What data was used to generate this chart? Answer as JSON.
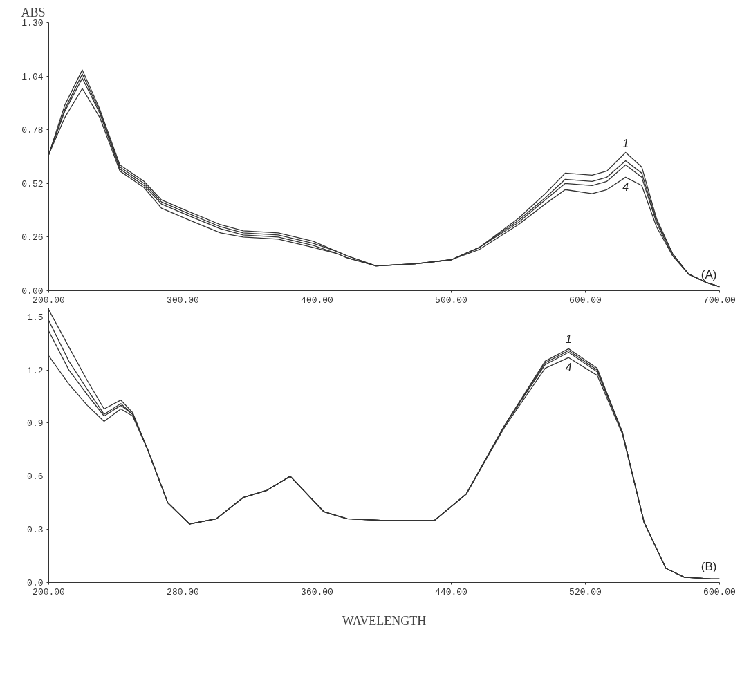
{
  "chart_data": [
    {
      "type": "line",
      "ylabel": "ABS",
      "xlim": [
        200,
        700
      ],
      "ylim": [
        0,
        1.3
      ],
      "xticks": [
        {
          "value": 200,
          "label": "200.00"
        },
        {
          "value": 300,
          "label": "300.00"
        },
        {
          "value": 400,
          "label": "400.00"
        },
        {
          "value": 500,
          "label": "500.00"
        },
        {
          "value": 600,
          "label": "600.00"
        },
        {
          "value": 700,
          "label": "700.00"
        }
      ],
      "yticks": [
        {
          "value": 0,
          "label": "0.00"
        },
        {
          "value": 0.26,
          "label": "0.26"
        },
        {
          "value": 0.52,
          "label": "0.52"
        },
        {
          "value": 0.78,
          "label": "0.78"
        },
        {
          "value": 1.04,
          "label": "1.04"
        },
        {
          "value": 1.3,
          "label": "1.30"
        }
      ],
      "x": [
        200,
        212,
        225,
        238,
        253,
        271,
        284,
        302,
        328,
        345,
        371,
        397,
        415,
        422,
        444,
        473,
        500,
        521,
        550,
        570,
        585,
        605,
        616,
        630,
        642,
        653,
        665,
        677,
        690,
        700
      ],
      "series": [
        {
          "color": "#333333",
          "values": [
            0.66,
            0.9,
            1.07,
            0.88,
            0.61,
            0.53,
            0.44,
            0.39,
            0.32,
            0.29,
            0.28,
            0.24,
            0.19,
            0.17,
            0.12,
            0.13,
            0.15,
            0.21,
            0.35,
            0.47,
            0.57,
            0.56,
            0.58,
            0.67,
            0.6,
            0.35,
            0.18,
            0.08,
            0.04,
            0.02
          ]
        },
        {
          "color": "#333333",
          "values": [
            0.66,
            0.88,
            1.05,
            0.87,
            0.6,
            0.52,
            0.43,
            0.38,
            0.31,
            0.28,
            0.27,
            0.23,
            0.19,
            0.17,
            0.12,
            0.13,
            0.15,
            0.21,
            0.34,
            0.45,
            0.54,
            0.53,
            0.55,
            0.63,
            0.57,
            0.34,
            0.18,
            0.08,
            0.04,
            0.02
          ]
        },
        {
          "color": "#333333",
          "values": [
            0.66,
            0.87,
            1.03,
            0.86,
            0.59,
            0.51,
            0.42,
            0.37,
            0.3,
            0.27,
            0.26,
            0.22,
            0.18,
            0.16,
            0.12,
            0.13,
            0.15,
            0.21,
            0.33,
            0.44,
            0.52,
            0.51,
            0.53,
            0.61,
            0.55,
            0.33,
            0.17,
            0.08,
            0.04,
            0.02
          ]
        },
        {
          "color": "#333333",
          "values": [
            0.66,
            0.84,
            0.98,
            0.84,
            0.58,
            0.5,
            0.4,
            0.35,
            0.28,
            0.26,
            0.25,
            0.21,
            0.18,
            0.16,
            0.12,
            0.13,
            0.15,
            0.2,
            0.32,
            0.42,
            0.49,
            0.47,
            0.49,
            0.55,
            0.51,
            0.31,
            0.17,
            0.08,
            0.04,
            0.02
          ]
        }
      ],
      "annotations": [
        "1",
        "4",
        "(A)"
      ],
      "grid": false,
      "line_style": "solid",
      "marker": "none"
    },
    {
      "type": "line",
      "xlabel": "WAVELENGTH",
      "xlim": [
        200,
        600
      ],
      "ylim": [
        0,
        1.55
      ],
      "xticks": [
        {
          "value": 200,
          "label": "200.00"
        },
        {
          "value": 280,
          "label": "280.00"
        },
        {
          "value": 360,
          "label": "360.00"
        },
        {
          "value": 440,
          "label": "440.00"
        },
        {
          "value": 520,
          "label": "520.00"
        },
        {
          "value": 600,
          "label": "600.00"
        }
      ],
      "yticks": [
        {
          "value": 0,
          "label": "0.0"
        },
        {
          "value": 0.3,
          "label": "0.3"
        },
        {
          "value": 0.6,
          "label": "0.6"
        },
        {
          "value": 0.9,
          "label": "0.9"
        },
        {
          "value": 1.2,
          "label": "1.2"
        },
        {
          "value": 1.5,
          "label": "1.5"
        }
      ],
      "x": [
        200,
        212,
        223,
        233,
        243,
        250,
        259,
        271,
        284,
        300,
        316,
        330,
        344,
        364,
        378,
        400,
        430,
        449,
        472,
        496,
        510,
        527,
        542,
        555,
        568,
        579,
        595,
        600
      ],
      "series": [
        {
          "color": "#333333",
          "values": [
            1.54,
            1.33,
            1.14,
            0.98,
            1.03,
            0.96,
            0.75,
            0.45,
            0.33,
            0.36,
            0.48,
            0.52,
            0.6,
            0.4,
            0.36,
            0.35,
            0.35,
            0.5,
            0.89,
            1.25,
            1.32,
            1.21,
            0.85,
            0.34,
            0.08,
            0.03,
            0.02,
            0.02
          ]
        },
        {
          "color": "#333333",
          "values": [
            1.48,
            1.25,
            1.09,
            0.95,
            1.01,
            0.95,
            0.75,
            0.45,
            0.33,
            0.36,
            0.48,
            0.52,
            0.6,
            0.4,
            0.36,
            0.35,
            0.35,
            0.5,
            0.89,
            1.24,
            1.31,
            1.2,
            0.85,
            0.34,
            0.08,
            0.03,
            0.02,
            0.02
          ]
        },
        {
          "color": "#333333",
          "values": [
            1.42,
            1.2,
            1.06,
            0.94,
            1.0,
            0.95,
            0.75,
            0.45,
            0.33,
            0.36,
            0.48,
            0.52,
            0.6,
            0.4,
            0.36,
            0.35,
            0.35,
            0.5,
            0.89,
            1.23,
            1.3,
            1.19,
            0.85,
            0.34,
            0.08,
            0.03,
            0.02,
            0.02
          ]
        },
        {
          "color": "#333333",
          "values": [
            1.28,
            1.12,
            1.0,
            0.91,
            0.98,
            0.94,
            0.75,
            0.45,
            0.33,
            0.36,
            0.48,
            0.52,
            0.6,
            0.4,
            0.36,
            0.35,
            0.35,
            0.5,
            0.88,
            1.21,
            1.27,
            1.17,
            0.84,
            0.34,
            0.08,
            0.03,
            0.02,
            0.02
          ]
        }
      ],
      "annotations": [
        "1",
        "4",
        "(B)"
      ],
      "grid": false,
      "line_style": "solid",
      "marker": "none"
    }
  ]
}
